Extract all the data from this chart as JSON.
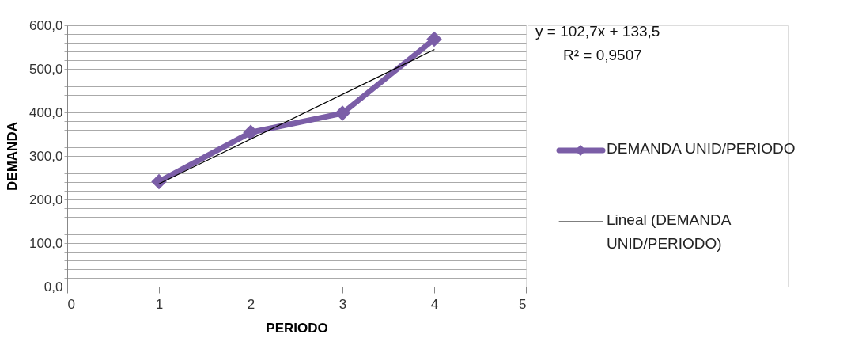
{
  "chart_data": {
    "type": "line",
    "xlabel": "PERIODO",
    "ylabel": "DEMANDA",
    "annotations": [
      "y = 102,7x + 133,5",
      "R² = 0,9507"
    ],
    "series": [
      {
        "name": "DEMANDA UNID/PERIODO",
        "color": "#7b5ea7",
        "x": [
          1,
          2,
          3,
          4
        ],
        "values": [
          241,
          354,
          398,
          568
        ],
        "marker": "diamond"
      },
      {
        "name": "Lineal (DEMANDA UNID/PERIODO)",
        "color": "#000000",
        "type": "line",
        "x": [
          1,
          4
        ],
        "values": [
          236,
          544
        ],
        "marker": "none"
      }
    ],
    "xlim": [
      0,
      5
    ],
    "xticks": [
      0,
      1,
      2,
      3,
      4,
      5
    ],
    "ylim": [
      0,
      600
    ],
    "yticks": [
      {
        "value": 0,
        "label": "0,0"
      },
      {
        "value": 20,
        "label": null
      },
      {
        "value": 40,
        "label": null
      },
      {
        "value": 60,
        "label": null
      },
      {
        "value": 80,
        "label": null
      },
      {
        "value": 100,
        "label": "100,0"
      },
      {
        "value": 120,
        "label": null
      },
      {
        "value": 140,
        "label": null
      },
      {
        "value": 160,
        "label": null
      },
      {
        "value": 180,
        "label": null
      },
      {
        "value": 200,
        "label": "200,0"
      },
      {
        "value": 220,
        "label": null
      },
      {
        "value": 240,
        "label": null
      },
      {
        "value": 260,
        "label": null
      },
      {
        "value": 280,
        "label": null
      },
      {
        "value": 300,
        "label": "300,0"
      },
      {
        "value": 320,
        "label": null
      },
      {
        "value": 340,
        "label": null
      },
      {
        "value": 360,
        "label": null
      },
      {
        "value": 380,
        "label": null
      },
      {
        "value": 400,
        "label": "400,0"
      },
      {
        "value": 420,
        "label": null
      },
      {
        "value": 440,
        "label": null
      },
      {
        "value": 460,
        "label": null
      },
      {
        "value": 480,
        "label": null
      },
      {
        "value": 500,
        "label": "500,0"
      },
      {
        "value": 520,
        "label": null
      },
      {
        "value": 540,
        "label": null
      },
      {
        "value": 560,
        "label": null
      },
      {
        "value": 580,
        "label": null
      },
      {
        "value": 600,
        "label": "600,0"
      }
    ],
    "grid": "y",
    "legend": "right"
  }
}
